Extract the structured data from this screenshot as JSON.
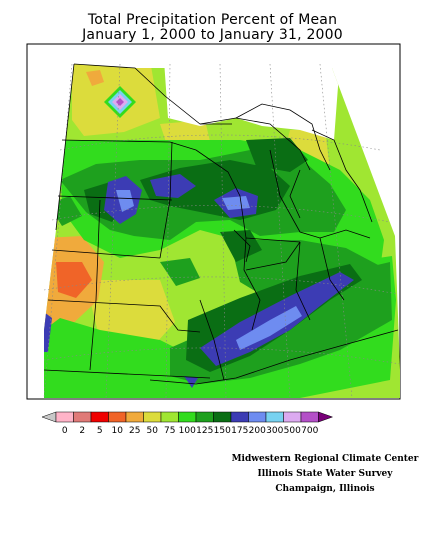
{
  "title_line1": "Total Precipitation Percent of Mean",
  "title_line2": "January 1, 2000 to January 31, 2000",
  "legend": {
    "labels": [
      "0",
      "2",
      "5",
      "10",
      "25",
      "50",
      "75",
      "100",
      "125",
      "150",
      "175",
      "200",
      "300",
      "500",
      "700"
    ],
    "colors": [
      "#c8c8c8",
      "#ffb4c8",
      "#e07a78",
      "#f00000",
      "#f06428",
      "#f0aa3c",
      "#dcdc3c",
      "#a0e632",
      "#32dc1e",
      "#1ea01e",
      "#0a6e14",
      "#3c3cb4",
      "#6e8cf0",
      "#78d2f0",
      "#dcaaf0",
      "#b450c8",
      "#780078"
    ]
  },
  "credits": [
    "Midwestern Regional Climate Center",
    "Illinois State Water Survey",
    "Champaign, Illinois"
  ]
}
